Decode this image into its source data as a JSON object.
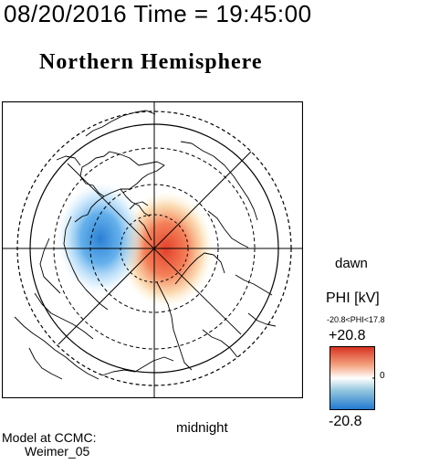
{
  "header": {
    "timestamp": "08/20/2016 Time = 19:45:00",
    "title": "Northern Hemisphere"
  },
  "map": {
    "orientation_labels": {
      "dawn": "dawn",
      "midnight": "midnight"
    },
    "projection": "polar-north",
    "potential_pattern": {
      "positive_cell": "dusk-side red",
      "negative_cell": "dawn-side blue"
    }
  },
  "legend": {
    "title": "PHI [kV]",
    "range_text": "-20.8<PHI<17.8",
    "max_label": "+20.8",
    "min_label": "-20.8",
    "mid_label": "0",
    "colors": {
      "max": "#d7301f",
      "upper": "#f4a582",
      "mid": "#ffffff",
      "lower": "#92c5de",
      "min": "#1f78d1"
    }
  },
  "footer": {
    "line1": "Model at CCMC:",
    "line2": "Weimer_05"
  }
}
